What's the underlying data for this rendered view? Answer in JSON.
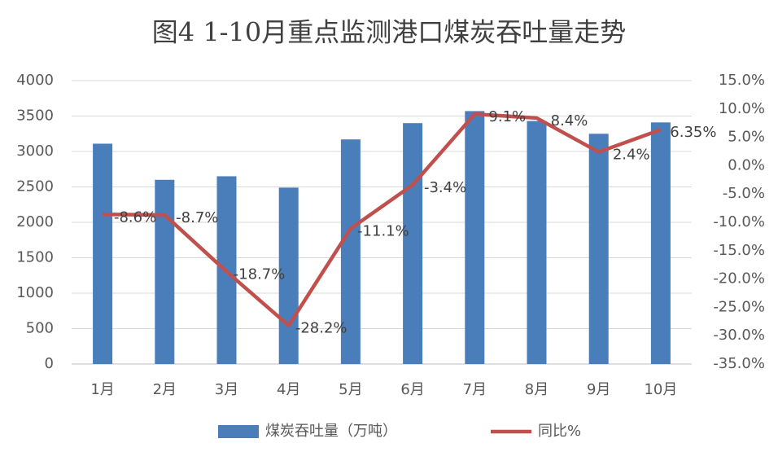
{
  "chart_data": {
    "type": "bar",
    "title": "图4  1-10月重点监测港口煤炭吞吐量走势",
    "categories": [
      "1月",
      "2月",
      "3月",
      "4月",
      "5月",
      "6月",
      "7月",
      "8月",
      "9月",
      "10月"
    ],
    "series": [
      {
        "name": "煤炭吞吐量（万吨）",
        "type": "bar",
        "color": "#4a7ebb",
        "values": [
          3110,
          2600,
          2650,
          2490,
          3170,
          3400,
          3570,
          3430,
          3250,
          3410
        ]
      },
      {
        "name": "同比%",
        "type": "line",
        "axis": "y2",
        "color": "#c0504d",
        "values": [
          -8.6,
          -8.7,
          -18.7,
          -28.2,
          -11.1,
          -3.4,
          9.1,
          8.4,
          2.4,
          6.35
        ],
        "value_labels": [
          "-8.6%",
          "-8.7%",
          "-18.7%",
          "-28.2%",
          "-11.1%",
          "-3.4%",
          "9.1%",
          "8.4%",
          "2.4%",
          "6.35%"
        ]
      }
    ],
    "ylim": [
      0,
      4000
    ],
    "yticks": [
      0,
      500,
      1000,
      1500,
      2000,
      2500,
      3000,
      3500,
      4000
    ],
    "y2lim": [
      -35,
      15
    ],
    "y2ticks": [
      {
        "value": -35,
        "label": "-35.0%"
      },
      {
        "value": -30,
        "label": "-30.0%"
      },
      {
        "value": -25,
        "label": "-25.0%"
      },
      {
        "value": -20,
        "label": "-20.0%"
      },
      {
        "value": -15,
        "label": "-15.0%"
      },
      {
        "value": -10,
        "label": "-10.0%"
      },
      {
        "value": -5,
        "label": "-5.0%"
      },
      {
        "value": 0,
        "label": "0.0%"
      },
      {
        "value": 5,
        "label": "5.0%"
      },
      {
        "value": 10,
        "label": "10.0%"
      },
      {
        "value": 15,
        "label": "15.0%"
      }
    ],
    "grid": true,
    "legend": "bottom"
  }
}
